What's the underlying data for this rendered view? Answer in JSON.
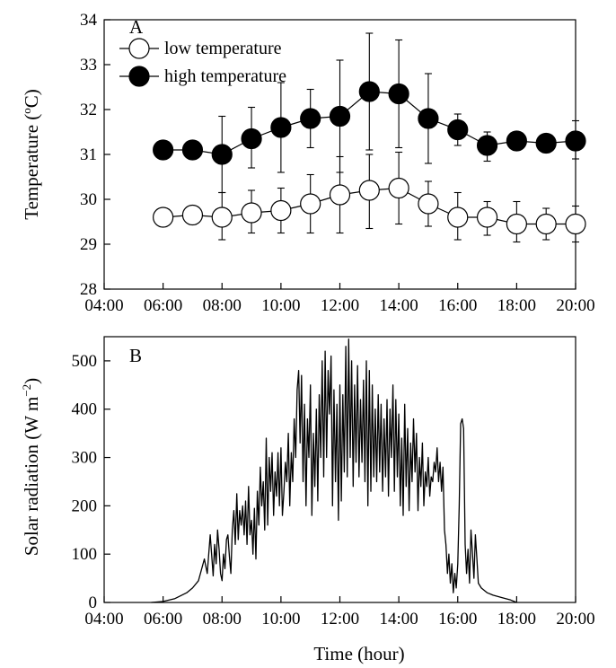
{
  "colors": {
    "axis": "#000000",
    "filled": "#000000",
    "open": "#ffffff"
  },
  "chart_data": [
    {
      "type": "scatter",
      "panel": "A",
      "ylabel_main": "Temperature (",
      "ylabel_sup": "o",
      "ylabel_end": "C)",
      "ylim": [
        28,
        34
      ],
      "yticks": [
        28,
        29,
        30,
        31,
        32,
        33,
        34
      ],
      "xlim_hours": [
        4,
        20
      ],
      "xticks": [
        "04:00",
        "06:00",
        "08:00",
        "10:00",
        "12:00",
        "14:00",
        "16:00",
        "18:00",
        "20:00"
      ],
      "grid": false,
      "legend_position": "top-left",
      "x": [
        "06:00",
        "07:00",
        "08:00",
        "09:00",
        "10:00",
        "11:00",
        "12:00",
        "13:00",
        "14:00",
        "15:00",
        "16:00",
        "17:00",
        "18:00",
        "19:00",
        "20:00"
      ],
      "series": [
        {
          "name": "low temperature",
          "marker": "open",
          "values": [
            29.6,
            29.65,
            29.6,
            29.7,
            29.75,
            29.9,
            30.1,
            30.2,
            30.25,
            29.9,
            29.6,
            29.6,
            29.45,
            29.45,
            29.45
          ],
          "err_hi": [
            29.6,
            29.65,
            30.15,
            30.2,
            30.25,
            30.55,
            30.95,
            31.0,
            31.05,
            30.4,
            30.15,
            29.95,
            29.95,
            29.8,
            29.85
          ],
          "err_lo": [
            29.6,
            29.65,
            29.1,
            29.25,
            29.25,
            29.25,
            29.25,
            29.35,
            29.45,
            29.4,
            29.1,
            29.2,
            29.05,
            29.1,
            29.05
          ]
        },
        {
          "name": "high temperature",
          "marker": "filled",
          "values": [
            31.1,
            31.1,
            31.0,
            31.35,
            31.6,
            31.8,
            31.85,
            32.4,
            32.35,
            31.8,
            31.55,
            31.2,
            31.3,
            31.25,
            31.3
          ],
          "err_hi": [
            31.1,
            31.1,
            31.85,
            32.05,
            32.6,
            32.45,
            33.1,
            33.7,
            33.55,
            32.8,
            31.9,
            31.5,
            31.3,
            31.25,
            31.75
          ],
          "err_lo": [
            31.1,
            31.1,
            30.15,
            30.7,
            30.6,
            31.15,
            30.6,
            31.1,
            31.15,
            30.8,
            31.2,
            30.85,
            31.3,
            31.25,
            30.9
          ]
        }
      ]
    },
    {
      "type": "line",
      "panel": "B",
      "ylabel_main": "Solar radiation (W m",
      "ylabel_sup": "−2",
      "ylabel_end": ")",
      "xlabel": "Time (hour)",
      "ylim": [
        0,
        550
      ],
      "yticks": [
        0,
        100,
        200,
        300,
        400,
        500
      ],
      "xlim_hours": [
        4,
        20
      ],
      "xticks": [
        "04:00",
        "06:00",
        "08:00",
        "10:00",
        "12:00",
        "14:00",
        "16:00",
        "18:00",
        "20:00"
      ],
      "grid": false,
      "x_hours": [
        5.6,
        6.0,
        6.4,
        6.8,
        7.0,
        7.2,
        7.4,
        7.5,
        7.6,
        7.7,
        7.75,
        7.8,
        7.85,
        7.9,
        7.95,
        8.0,
        8.05,
        8.1,
        8.15,
        8.2,
        8.25,
        8.3,
        8.35,
        8.4,
        8.45,
        8.5,
        8.55,
        8.6,
        8.65,
        8.7,
        8.75,
        8.8,
        8.85,
        8.9,
        8.95,
        9.0,
        9.05,
        9.1,
        9.15,
        9.2,
        9.25,
        9.3,
        9.35,
        9.4,
        9.45,
        9.5,
        9.55,
        9.6,
        9.65,
        9.7,
        9.75,
        9.8,
        9.85,
        9.9,
        9.95,
        10.0,
        10.05,
        10.1,
        10.15,
        10.2,
        10.25,
        10.3,
        10.35,
        10.4,
        10.45,
        10.5,
        10.55,
        10.6,
        10.65,
        10.7,
        10.75,
        10.8,
        10.85,
        10.9,
        10.95,
        11.0,
        11.05,
        11.1,
        11.15,
        11.2,
        11.25,
        11.3,
        11.35,
        11.4,
        11.45,
        11.5,
        11.55,
        11.6,
        11.65,
        11.7,
        11.75,
        11.8,
        11.85,
        11.9,
        11.95,
        12.0,
        12.05,
        12.1,
        12.15,
        12.2,
        12.25,
        12.3,
        12.35,
        12.4,
        12.45,
        12.5,
        12.55,
        12.6,
        12.65,
        12.7,
        12.75,
        12.8,
        12.85,
        12.9,
        12.95,
        13.0,
        13.05,
        13.1,
        13.15,
        13.2,
        13.25,
        13.3,
        13.35,
        13.4,
        13.45,
        13.5,
        13.55,
        13.6,
        13.65,
        13.7,
        13.75,
        13.8,
        13.85,
        13.9,
        13.95,
        14.0,
        14.05,
        14.1,
        14.15,
        14.2,
        14.25,
        14.3,
        14.35,
        14.4,
        14.45,
        14.5,
        14.55,
        14.6,
        14.65,
        14.7,
        14.75,
        14.8,
        14.85,
        14.9,
        14.95,
        15.0,
        15.05,
        15.1,
        15.15,
        15.2,
        15.25,
        15.3,
        15.35,
        15.4,
        15.45,
        15.5,
        15.55,
        15.6,
        15.65,
        15.7,
        15.75,
        15.8,
        15.85,
        15.9,
        15.95,
        16.0,
        16.05,
        16.1,
        16.15,
        16.2,
        16.25,
        16.3,
        16.35,
        16.4,
        16.45,
        16.5,
        16.55,
        16.6,
        16.65,
        16.7,
        16.8,
        17.0,
        17.2,
        17.5,
        17.8,
        18.0
      ],
      "values": [
        0,
        2,
        8,
        20,
        30,
        45,
        90,
        60,
        140,
        55,
        120,
        80,
        150,
        110,
        60,
        45,
        100,
        70,
        130,
        140,
        95,
        60,
        150,
        190,
        120,
        225,
        130,
        190,
        160,
        200,
        140,
        210,
        120,
        240,
        140,
        170,
        100,
        195,
        90,
        230,
        160,
        280,
        200,
        250,
        150,
        340,
        160,
        300,
        230,
        310,
        180,
        270,
        220,
        310,
        200,
        320,
        180,
        230,
        290,
        250,
        350,
        200,
        310,
        250,
        380,
        300,
        440,
        480,
        330,
        470,
        250,
        410,
        200,
        380,
        300,
        450,
        180,
        350,
        240,
        400,
        210,
        430,
        300,
        500,
        260,
        520,
        300,
        480,
        390,
        510,
        200,
        440,
        250,
        410,
        170,
        450,
        210,
        430,
        270,
        530,
        260,
        545,
        300,
        500,
        240,
        450,
        290,
        490,
        260,
        420,
        290,
        460,
        250,
        500,
        200,
        480,
        230,
        450,
        260,
        400,
        250,
        430,
        270,
        410,
        230,
        380,
        260,
        420,
        220,
        400,
        300,
        450,
        230,
        420,
        260,
        390,
        200,
        340,
        180,
        410,
        240,
        360,
        190,
        330,
        250,
        380,
        270,
        350,
        190,
        300,
        240,
        330,
        200,
        270,
        240,
        300,
        220,
        260,
        250,
        290,
        270,
        320,
        250,
        290,
        230,
        280,
        150,
        120,
        60,
        100,
        40,
        80,
        20,
        60,
        30,
        80,
        200,
        370,
        380,
        360,
        120,
        60,
        110,
        40,
        150,
        100,
        50,
        140,
        90,
        40,
        30,
        20,
        15,
        10,
        5,
        0
      ]
    }
  ]
}
